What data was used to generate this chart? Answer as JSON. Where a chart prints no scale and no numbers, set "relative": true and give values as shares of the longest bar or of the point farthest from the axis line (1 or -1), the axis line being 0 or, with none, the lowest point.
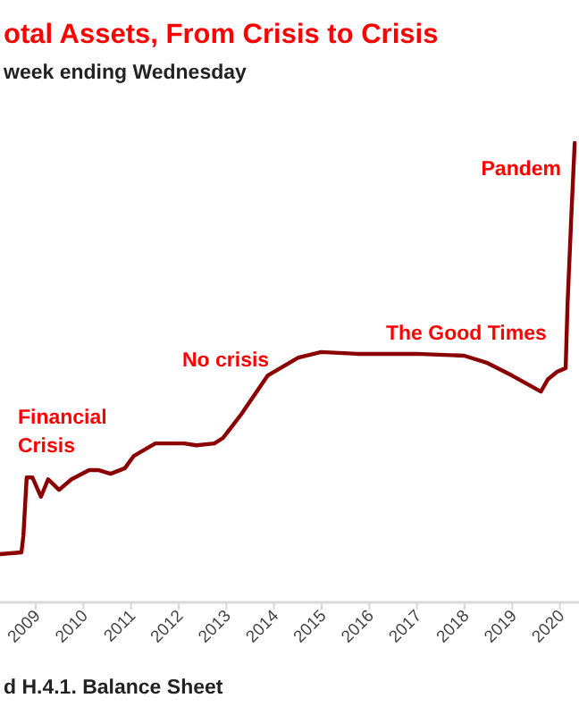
{
  "chart_data": {
    "type": "line",
    "title": "otal Assets, From Crisis to Crisis",
    "subtitle": "week ending Wednesday",
    "relative": true,
    "x": [
      2008.25,
      2008.7,
      2008.74,
      2008.81,
      2008.93,
      2009.11,
      2009.26,
      2009.37,
      2009.49,
      2009.75,
      2010.12,
      2010.31,
      2010.57,
      2010.87,
      2011.06,
      2011.51,
      2011.81,
      2012.11,
      2012.37,
      2012.75,
      2012.93,
      2013.31,
      2013.87,
      2014.51,
      2014.99,
      2015.74,
      2016.98,
      2017.99,
      2018.48,
      2018.99,
      2019.6,
      2019.75,
      2019.94,
      2020.12,
      2020.16,
      2020.24,
      2020.31
    ],
    "series": [
      {
        "color": "#8b0000",
        "values": [
          0.105,
          0.109,
          0.144,
          0.272,
          0.272,
          0.23,
          0.268,
          0.257,
          0.245,
          0.268,
          0.288,
          0.288,
          0.28,
          0.292,
          0.319,
          0.346,
          0.346,
          0.346,
          0.342,
          0.346,
          0.358,
          0.409,
          0.494,
          0.533,
          0.545,
          0.541,
          0.541,
          0.537,
          0.521,
          0.494,
          0.459,
          0.486,
          0.502,
          0.51,
          0.65,
          0.844,
          1
        ]
      }
    ],
    "xlim": [
      2008.25,
      2020.4
    ],
    "xticks": [
      2009,
      2010,
      2011,
      2012,
      2013,
      2014,
      2015,
      2016,
      2017,
      2018,
      2019,
      2020
    ],
    "marker": "none",
    "line_style": "solid",
    "annotations": [
      "Financial\nCrisis",
      "No crisis",
      "The Good Times",
      "Pandem",
      "d H.4.1. Balance Sheet"
    ]
  }
}
